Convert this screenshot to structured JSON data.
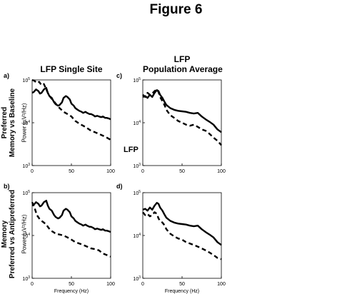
{
  "figure_title": "Figure 6",
  "column_headers": {
    "left": "LFP Single Site",
    "right_line1": "LFP",
    "right_line2": "Population Average"
  },
  "row_labels": {
    "top_line1": "Preferred",
    "top_line2": "Memory vs Baseline",
    "bottom_line1": "Memory",
    "bottom_line2": "Preferred vs Antipreferred"
  },
  "y_axis_label": "Power (µV²/Hz)",
  "side_label": "LFP",
  "chart_data": [
    {
      "panel": "a)",
      "type": "line",
      "xlabel": "",
      "xlim": [
        0,
        100
      ],
      "ylim": [
        1000,
        100000
      ],
      "yscale": "log",
      "x_ticks": [
        0,
        50,
        100
      ],
      "y_ticks": [
        "10^3",
        "10^4",
        "10^5"
      ],
      "series": [
        {
          "style": "solid",
          "x": [
            0,
            2,
            5,
            8,
            10,
            12,
            15,
            18,
            20,
            22,
            25,
            28,
            30,
            33,
            35,
            38,
            40,
            43,
            45,
            48,
            50,
            53,
            55,
            58,
            60,
            63,
            65,
            68,
            70,
            73,
            75,
            78,
            80,
            83,
            85,
            88,
            90,
            93,
            95,
            98,
            100
          ],
          "y": [
            50000,
            52000,
            60000,
            55000,
            48000,
            50000,
            60000,
            65000,
            50000,
            42000,
            38000,
            30000,
            27000,
            25000,
            26000,
            30000,
            38000,
            42000,
            40000,
            35000,
            28000,
            25000,
            22000,
            20000,
            19000,
            18000,
            17000,
            18000,
            17000,
            16000,
            16000,
            15000,
            14000,
            14500,
            14000,
            13500,
            14000,
            13000,
            13000,
            12500,
            12000
          ]
        },
        {
          "style": "dashed",
          "x": [
            0,
            3,
            6,
            9,
            12,
            15,
            18,
            21,
            24,
            27,
            30,
            35,
            40,
            45,
            50,
            55,
            60,
            65,
            70,
            75,
            80,
            85,
            90,
            95,
            100
          ],
          "y": [
            100000,
            95000,
            85000,
            90000,
            75000,
            80000,
            60000,
            45000,
            38000,
            33000,
            28000,
            22000,
            18000,
            16000,
            14000,
            11000,
            9500,
            8500,
            7500,
            6500,
            6000,
            5500,
            5000,
            4500,
            4000
          ]
        }
      ]
    },
    {
      "panel": "c)",
      "type": "line",
      "xlabel": "",
      "xlim": [
        0,
        100
      ],
      "ylim": [
        1000,
        100000
      ],
      "yscale": "log",
      "x_ticks": [
        0,
        50,
        100
      ],
      "y_ticks": [
        "10^3",
        "10^4",
        "10^5"
      ],
      "series": [
        {
          "style": "solid",
          "x": [
            0,
            3,
            6,
            9,
            12,
            15,
            18,
            20,
            22,
            25,
            28,
            30,
            35,
            40,
            45,
            50,
            55,
            60,
            65,
            70,
            75,
            80,
            85,
            90,
            95,
            100
          ],
          "y": [
            40000,
            42000,
            38000,
            45000,
            40000,
            50000,
            58000,
            55000,
            45000,
            38000,
            30000,
            26000,
            22000,
            20000,
            19000,
            18500,
            18000,
            17000,
            16500,
            17000,
            14000,
            12000,
            10500,
            9000,
            7000,
            6000
          ]
        },
        {
          "style": "dashed",
          "x": [
            0,
            3,
            6,
            9,
            12,
            15,
            18,
            20,
            22,
            25,
            28,
            30,
            35,
            40,
            45,
            50,
            55,
            60,
            65,
            70,
            75,
            80,
            85,
            90,
            95,
            100
          ],
          "y": [
            45000,
            40000,
            50000,
            45000,
            48000,
            55000,
            60000,
            52000,
            40000,
            32000,
            25000,
            20000,
            15000,
            13000,
            11000,
            10000,
            9000,
            8500,
            9000,
            8000,
            7000,
            6500,
            5500,
            4500,
            3800,
            3000
          ]
        }
      ]
    },
    {
      "panel": "b)",
      "type": "line",
      "xlabel": "Frequency (Hz)",
      "xlim": [
        0,
        100
      ],
      "ylim": [
        1000,
        100000
      ],
      "yscale": "log",
      "x_ticks": [
        0,
        50,
        100
      ],
      "y_ticks": [
        "10^3",
        "10^4",
        "10^5"
      ],
      "series": [
        {
          "style": "solid",
          "x": [
            0,
            2,
            5,
            8,
            10,
            12,
            15,
            18,
            20,
            22,
            25,
            28,
            30,
            33,
            35,
            38,
            40,
            43,
            45,
            48,
            50,
            53,
            55,
            58,
            60,
            63,
            65,
            68,
            70,
            73,
            75,
            78,
            80,
            83,
            85,
            88,
            90,
            93,
            95,
            98,
            100
          ],
          "y": [
            50000,
            52000,
            60000,
            55000,
            48000,
            50000,
            60000,
            65000,
            50000,
            42000,
            38000,
            30000,
            27000,
            25000,
            26000,
            30000,
            38000,
            42000,
            40000,
            35000,
            28000,
            25000,
            22000,
            20000,
            19000,
            18000,
            17000,
            18000,
            17000,
            16000,
            16000,
            15000,
            14000,
            14500,
            14000,
            13500,
            14000,
            13000,
            13000,
            12500,
            12000
          ]
        },
        {
          "style": "dashed",
          "x": [
            0,
            3,
            6,
            9,
            12,
            15,
            18,
            21,
            24,
            27,
            30,
            35,
            40,
            45,
            50,
            55,
            60,
            65,
            70,
            75,
            80,
            85,
            90,
            95,
            100
          ],
          "y": [
            60000,
            45000,
            30000,
            25000,
            22000,
            20000,
            18000,
            15000,
            13000,
            12000,
            11000,
            10500,
            10000,
            9000,
            8000,
            7000,
            6500,
            6000,
            5500,
            5000,
            4800,
            4500,
            3800,
            3500,
            3200
          ]
        }
      ]
    },
    {
      "panel": "d)",
      "type": "line",
      "xlabel": "Frequency (Hz)",
      "xlim": [
        0,
        100
      ],
      "ylim": [
        1000,
        100000
      ],
      "yscale": "log",
      "x_ticks": [
        0,
        50,
        100
      ],
      "y_ticks": [
        "10^3",
        "10^4",
        "10^5"
      ],
      "series": [
        {
          "style": "solid",
          "x": [
            0,
            3,
            6,
            9,
            12,
            15,
            18,
            20,
            22,
            25,
            28,
            30,
            35,
            40,
            45,
            50,
            55,
            60,
            65,
            70,
            75,
            80,
            85,
            90,
            95,
            100
          ],
          "y": [
            40000,
            42000,
            38000,
            45000,
            40000,
            50000,
            58000,
            55000,
            45000,
            38000,
            30000,
            26000,
            22000,
            20000,
            19000,
            18500,
            18000,
            17000,
            16500,
            17000,
            14000,
            12000,
            10500,
            9000,
            7000,
            6000
          ]
        },
        {
          "style": "dashed",
          "x": [
            0,
            3,
            6,
            9,
            12,
            15,
            18,
            20,
            22,
            25,
            28,
            30,
            35,
            40,
            45,
            50,
            55,
            60,
            65,
            70,
            75,
            80,
            85,
            90,
            95,
            100
          ],
          "y": [
            35000,
            30000,
            32000,
            28000,
            30000,
            35000,
            32000,
            25000,
            22000,
            20000,
            17000,
            14000,
            11000,
            9500,
            8500,
            8000,
            7000,
            6500,
            6000,
            5500,
            5000,
            4500,
            4000,
            3500,
            3000,
            2800
          ]
        }
      ]
    }
  ]
}
